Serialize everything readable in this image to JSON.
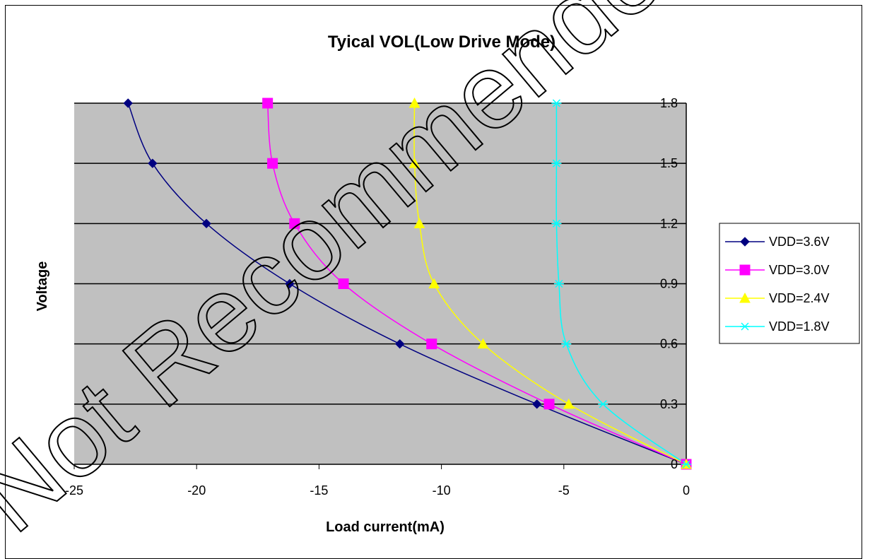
{
  "watermark": "Not Recommended",
  "chart_data": {
    "type": "line",
    "title": "Tyical VOL(Low Drive Mode)",
    "xlabel": "Load current(mA)",
    "ylabel": "Voltage",
    "xlim": [
      -25,
      0
    ],
    "ylim": [
      0,
      1.8
    ],
    "x_ticks": [
      "-25",
      "-20",
      "-15",
      "-10",
      "-5",
      "0"
    ],
    "y_ticks": [
      "0",
      "0.3",
      "0.6",
      "0.9",
      "1.2",
      "1.5",
      "1.8"
    ],
    "y_axis_side": "right",
    "grid": "horizontal",
    "plot_background": "#c0c0c0",
    "legend_position": "right",
    "series": [
      {
        "name": "VDD=3.6V",
        "color": "#000080",
        "marker": "diamond",
        "points": [
          [
            0,
            0
          ],
          [
            -6.1,
            0.3
          ],
          [
            -11.7,
            0.6
          ],
          [
            -16.2,
            0.9
          ],
          [
            -19.6,
            1.2
          ],
          [
            -21.8,
            1.5
          ],
          [
            -22.8,
            1.8
          ]
        ]
      },
      {
        "name": "VDD=3.0V",
        "color": "#ff00ff",
        "marker": "square",
        "points": [
          [
            0,
            0
          ],
          [
            -5.6,
            0.3
          ],
          [
            -10.4,
            0.6
          ],
          [
            -14.0,
            0.9
          ],
          [
            -16.0,
            1.2
          ],
          [
            -16.9,
            1.5
          ],
          [
            -17.1,
            1.8
          ]
        ]
      },
      {
        "name": "VDD=2.4V",
        "color": "#ffff00",
        "marker": "triangle",
        "points": [
          [
            0,
            0
          ],
          [
            -4.8,
            0.3
          ],
          [
            -8.3,
            0.6
          ],
          [
            -10.3,
            0.9
          ],
          [
            -10.9,
            1.2
          ],
          [
            -11.1,
            1.5
          ],
          [
            -11.1,
            1.8
          ]
        ]
      },
      {
        "name": "VDD=1.8V",
        "color": "#00ffff",
        "marker": "x",
        "points": [
          [
            0,
            0
          ],
          [
            -3.4,
            0.3
          ],
          [
            -4.9,
            0.6
          ],
          [
            -5.2,
            0.9
          ],
          [
            -5.3,
            1.2
          ],
          [
            -5.3,
            1.5
          ],
          [
            -5.3,
            1.8
          ]
        ]
      }
    ]
  }
}
